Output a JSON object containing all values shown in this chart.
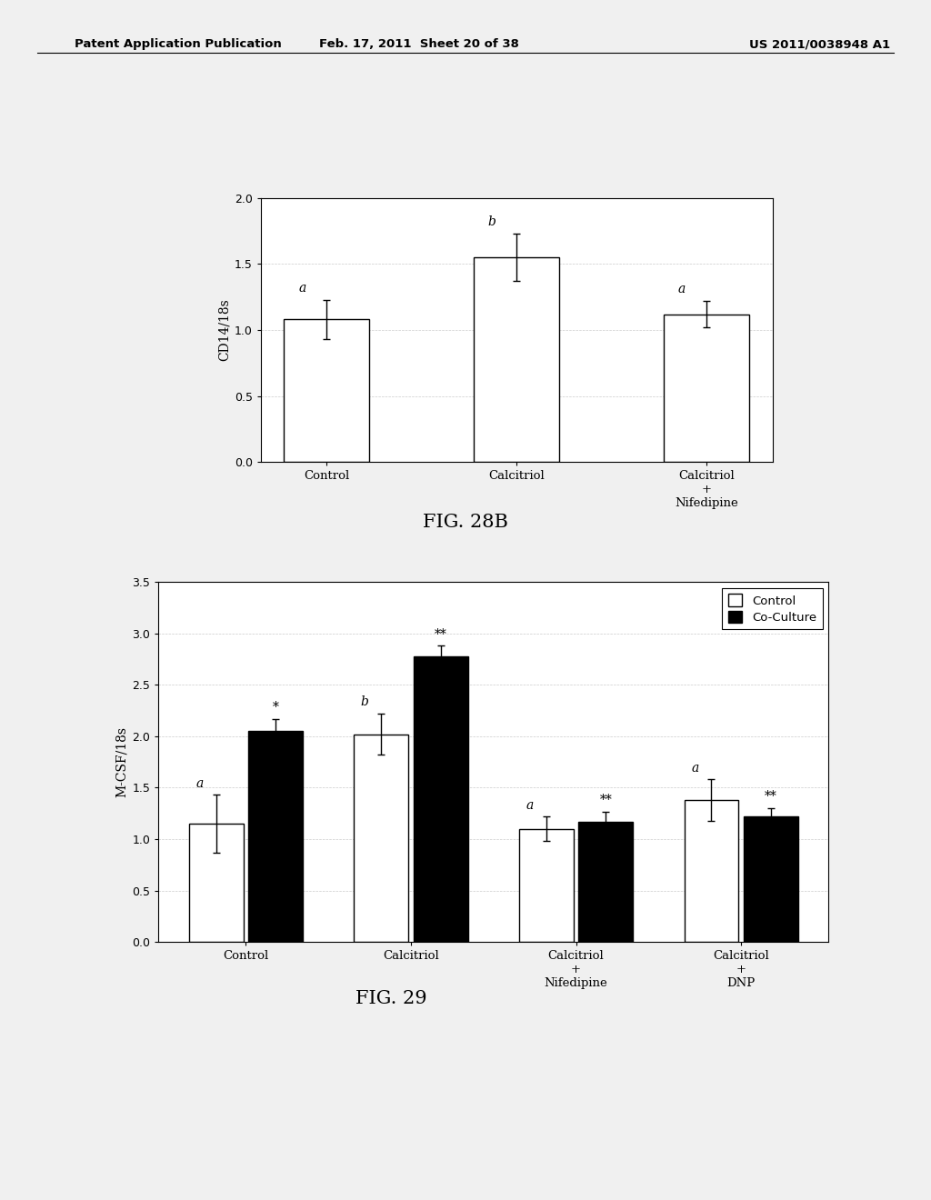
{
  "fig28b": {
    "categories": [
      "Control",
      "Calcitriol",
      "Calcitriol\n+\nNifedipine"
    ],
    "values": [
      1.08,
      1.55,
      1.12
    ],
    "errors": [
      0.15,
      0.18,
      0.1
    ],
    "labels": [
      "a",
      "b",
      "a"
    ],
    "ylabel": "CD14/18s",
    "ylim": [
      0,
      2
    ],
    "yticks": [
      0,
      0.5,
      1,
      1.5,
      2
    ],
    "figcaption": "FIG. 28B"
  },
  "fig29": {
    "categories": [
      "Control",
      "Calcitriol",
      "Calcitriol\n+\nNifedipine",
      "Calcitriol\n+\nDNP"
    ],
    "control_values": [
      1.15,
      2.02,
      1.1,
      1.38
    ],
    "coculture_values": [
      2.05,
      2.78,
      1.17,
      1.22
    ],
    "control_errors": [
      0.28,
      0.2,
      0.12,
      0.2
    ],
    "coculture_errors": [
      0.12,
      0.1,
      0.1,
      0.08
    ],
    "control_labels": [
      "a",
      "b",
      "a",
      "a"
    ],
    "coculture_labels": [
      "*",
      "**",
      "**",
      "**"
    ],
    "ylabel": "M-CSF/18s",
    "ylim": [
      0,
      3.5
    ],
    "yticks": [
      0,
      0.5,
      1,
      1.5,
      2,
      2.5,
      3,
      3.5
    ],
    "figcaption": "FIG. 29",
    "legend_labels": [
      "Control",
      "Co-Culture"
    ]
  },
  "header_left": "Patent Application Publication",
  "header_mid": "Feb. 17, 2011  Sheet 20 of 38",
  "header_right": "US 2011/0038948 A1",
  "bg_color": "#f0f0f0"
}
